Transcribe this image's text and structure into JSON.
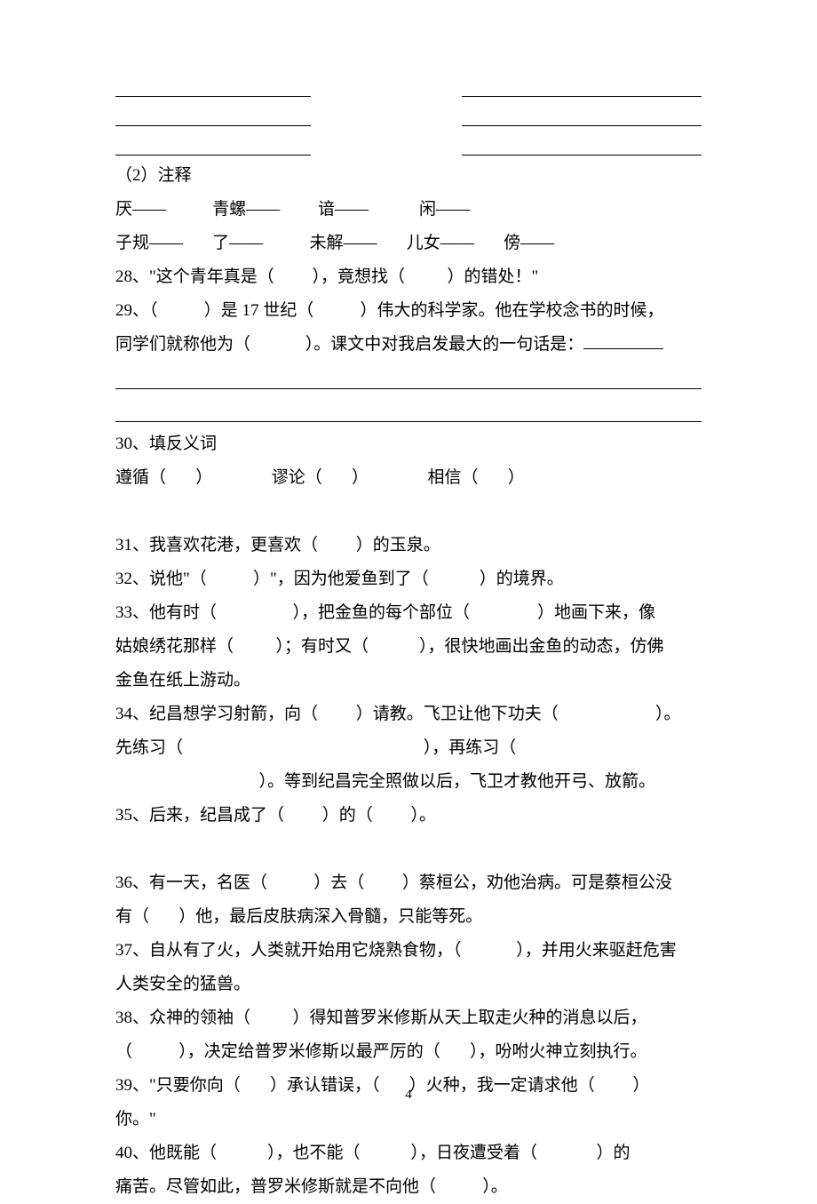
{
  "blanks": {
    "rows_count": 3
  },
  "sec2": {
    "heading": "（2）注释",
    "row1": {
      "a": "厌——",
      "b": "青螺——",
      "c": "谙——",
      "d": "闲——"
    },
    "row2": {
      "a": "子规——",
      "b": "了——",
      "c": "未解——",
      "d": "儿女——",
      "e": "傍——"
    }
  },
  "q28": "28、\"这个青年真是（         ），竟想找（          ）的错处！\"",
  "q29": {
    "l1": "29、（           ）是 17 世纪（           ）伟大的科学家。他在学校念书的时候，",
    "l2_pre": "同学们就称他为（             ）。课文中对我启发最大的一句话是："
  },
  "q30": {
    "heading": "30、填反义词",
    "items": "遵循（       ）              谬论（       ）              相信（       ）"
  },
  "q31": "31、我喜欢花港，更喜欢（         ）的玉泉。",
  "q32": "32、说他\"（           ）\"，因为他爱鱼到了（            ）的境界。",
  "q33": {
    "l1": "33、他有时（                  ），把金鱼的每个部位（                ）地画下来，像",
    "l2": "姑娘绣花那样（          ）；有时又（            ），很快地画出金鱼的动态，仿佛",
    "l3": "金鱼在纸上游动。"
  },
  "q34": {
    "l1": "34、纪昌想学习射箭，向（         ）请教。飞卫让他下功夫（                       ）。",
    "l2": "先练习（                                                         ），再练习（",
    "l3": "                                  ）。等到纪昌完全照做以后，飞卫才教他开弓、放箭。"
  },
  "q35": "35、后来，纪昌成了（         ）的（         ）。",
  "q36": {
    "l1": "36、有一天，名医（           ）去（         ）蔡桓公，劝他治病。可是蔡桓公没",
    "l2": "有（       ）他，最后皮肤病深入骨髓，只能等死。"
  },
  "q37": {
    "l1": "37、自从有了火，人类就开始用它烧熟食物，（             ），并用火来驱赶危害",
    "l2": "人类安全的猛兽。"
  },
  "q38": {
    "l1": "38、众神的领袖（          ）得知普罗米修斯从天上取走火种的消息以后，",
    "l2": "（           ），决定给普罗米修斯以最严厉的（       ），吩咐火神立刻执行。"
  },
  "q39": {
    "l1": "39、\"只要你向（       ）承认错误，（       ）火种，我一定请求他（         ）",
    "l2": "你。\""
  },
  "q40": {
    "l1": "40、他既能（            ），也不能（            ），日夜遭受着（              ）的",
    "l2": "痛苦。尽管如此，普罗米修斯就是不向他（           ）。"
  },
  "page_number": "4"
}
